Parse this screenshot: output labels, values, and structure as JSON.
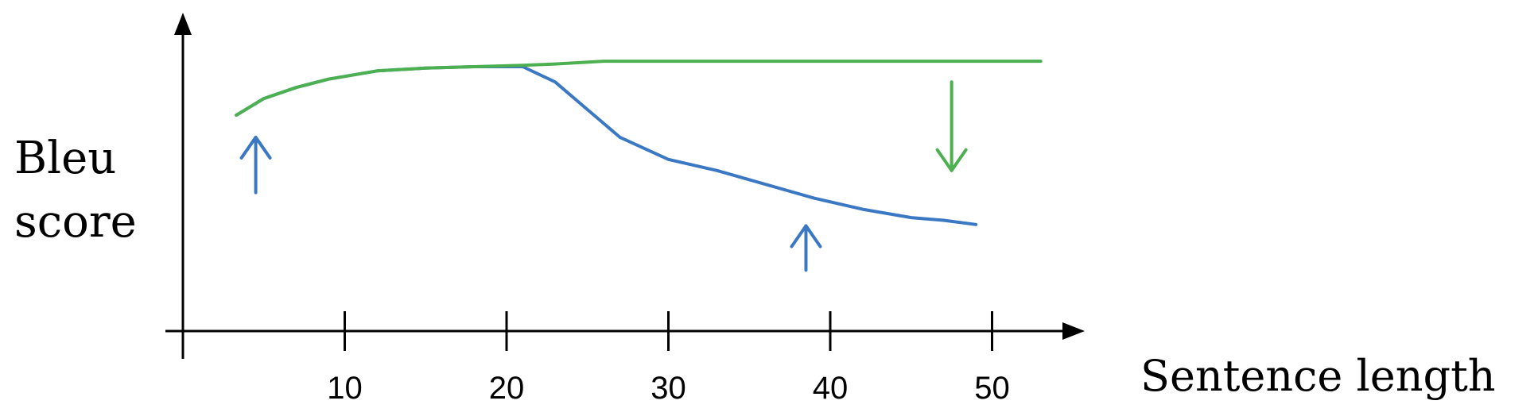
{
  "chart_data": {
    "type": "line",
    "xlabel": "Sentence length",
    "ylabel": [
      "Bleu",
      "score"
    ],
    "xlim": [
      0,
      60
    ],
    "ylim": [
      0,
      1
    ],
    "x_ticks": [
      10,
      20,
      30,
      40,
      50
    ],
    "grid": false,
    "legend": "none",
    "series": [
      {
        "color": "#3a78c3",
        "x": [
          3.3,
          5,
          7,
          9,
          12,
          15,
          18,
          21,
          23,
          25,
          27,
          30,
          33,
          36,
          39,
          42,
          45,
          47,
          49
        ],
        "y": [
          0.78,
          0.84,
          0.88,
          0.91,
          0.94,
          0.95,
          0.955,
          0.955,
          0.9,
          0.8,
          0.7,
          0.62,
          0.58,
          0.53,
          0.48,
          0.44,
          0.41,
          0.4,
          0.385
        ]
      },
      {
        "color": "#4cb050",
        "x": [
          3.3,
          5,
          7,
          9,
          12,
          15,
          18,
          21,
          23,
          26,
          30,
          35,
          40,
          45,
          50,
          53
        ],
        "y": [
          0.78,
          0.84,
          0.88,
          0.91,
          0.94,
          0.95,
          0.955,
          0.96,
          0.965,
          0.975,
          0.975,
          0.975,
          0.975,
          0.975,
          0.975,
          0.975
        ]
      }
    ],
    "annotations": [
      {
        "type": "arrow-up",
        "color": "#3a78c3",
        "x": 4.5,
        "y_from": 0.5,
        "y_to": 0.7
      },
      {
        "type": "arrow-up",
        "color": "#3a78c3",
        "x": 38.5,
        "y_from": 0.22,
        "y_to": 0.38
      },
      {
        "type": "arrow-down",
        "color": "#4cb050",
        "x": 47.5,
        "y_from": 0.9,
        "y_to": 0.58
      }
    ]
  }
}
